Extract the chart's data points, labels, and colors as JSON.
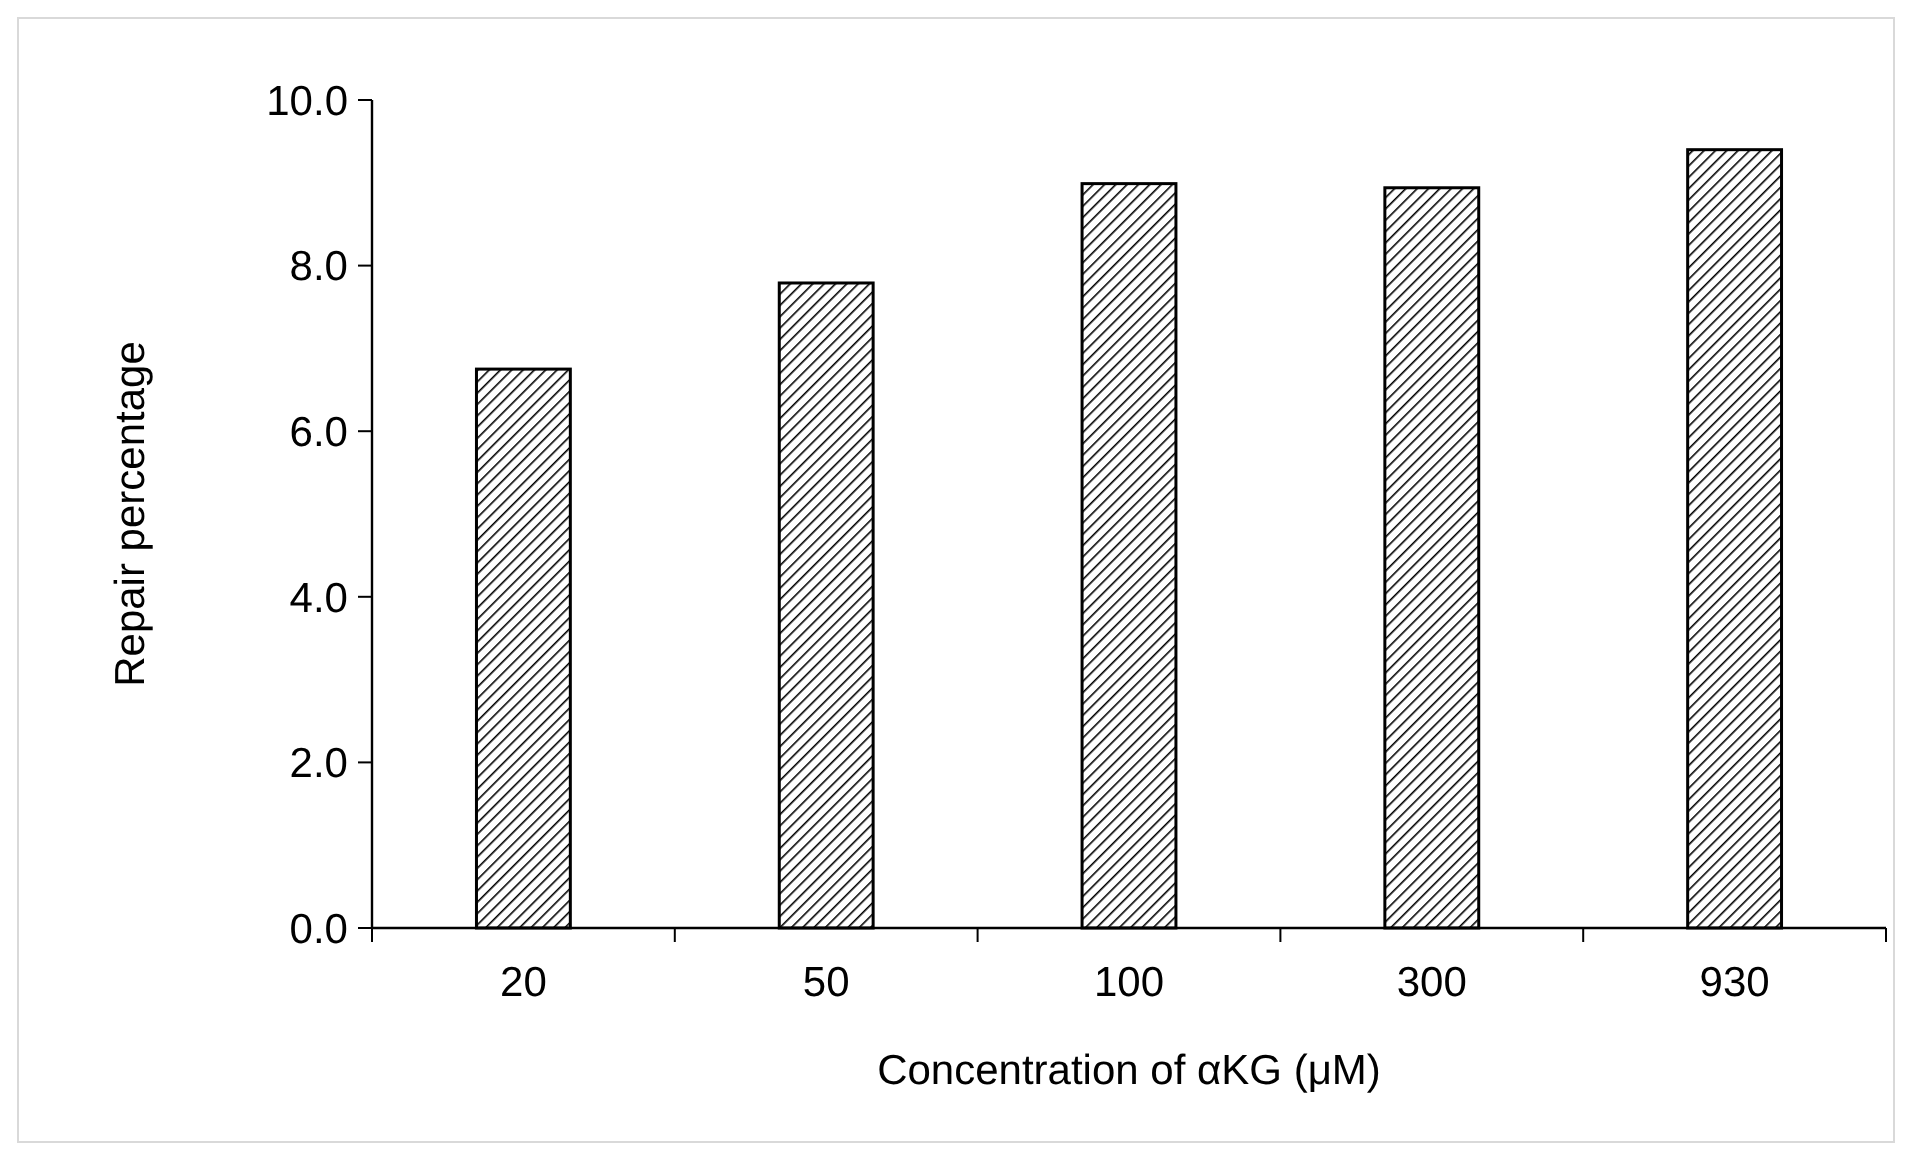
{
  "chart_data": {
    "type": "bar",
    "xlabel": "Concentration of αKG (μM)",
    "ylabel": "Repair percentage",
    "categories": [
      "20",
      "50",
      "100",
      "300",
      "930"
    ],
    "values": [
      6.75,
      7.79,
      8.99,
      8.94,
      9.4
    ],
    "color": "#000000",
    "ylim": [
      0,
      10
    ],
    "yticks": [
      {
        "value": 0,
        "label": "0.0"
      },
      {
        "value": 2,
        "label": "2.0"
      },
      {
        "value": 4,
        "label": "4.0"
      },
      {
        "value": 6,
        "label": "6.0"
      },
      {
        "value": 8,
        "label": "8.0"
      },
      {
        "value": 10,
        "label": "10.0"
      }
    ]
  }
}
